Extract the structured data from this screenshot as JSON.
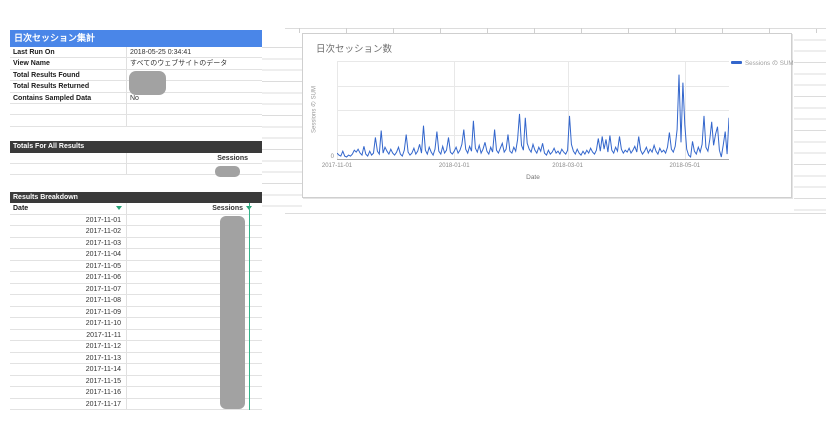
{
  "report": {
    "title": "日次セッション集計",
    "fields": [
      {
        "label": "Last Run On",
        "value": "2018-05-25 0:34:41",
        "redacted": false
      },
      {
        "label": "View Name",
        "value": "すべてのウェブサイトのデータ",
        "redacted": false
      },
      {
        "label": "Total Results Found",
        "value": "",
        "redacted": true
      },
      {
        "label": "Total Results Returned",
        "value": "",
        "redacted": true
      },
      {
        "label": "Contains Sampled Data",
        "value": "No",
        "redacted": false
      }
    ]
  },
  "totals": {
    "header": "Totals For All Results",
    "column_label": "Sessions",
    "value": "",
    "redacted": true
  },
  "breakdown": {
    "header": "Results Breakdown",
    "columns": [
      "Date",
      "Sessions"
    ],
    "dates": [
      "2017-11-01",
      "2017-11-02",
      "2017-11-03",
      "2017-11-04",
      "2017-11-05",
      "2017-11-06",
      "2017-11-07",
      "2017-11-08",
      "2017-11-09",
      "2017-11-10",
      "2017-11-11",
      "2017-11-12",
      "2017-11-13",
      "2017-11-14",
      "2017-11-15",
      "2017-11-16",
      "2017-11-17"
    ],
    "sessions_redacted": true
  },
  "chart_data": {
    "type": "line",
    "title": "日次セッション数",
    "xlabel": "Date",
    "ylabel": "Sessions の SUM",
    "legend": "Sessions の SUM",
    "legend_position": "right-top",
    "grid": true,
    "ylim": [
      0,
      100
    ],
    "y_ticks": [
      {
        "value": 0,
        "label": "0"
      }
    ],
    "x_ticks": [
      {
        "label": "2017-11-01",
        "day": 0
      },
      {
        "label": "2018-01-01",
        "day": 61
      },
      {
        "label": "2018-03-01",
        "day": 120
      },
      {
        "label": "2018-05-01",
        "day": 181
      }
    ],
    "start_date": "2017-11-01",
    "series": [
      {
        "name": "Sessions の SUM",
        "values": [
          6,
          4,
          3,
          8,
          3,
          2,
          4,
          3,
          5,
          9,
          7,
          10,
          6,
          4,
          13,
          5,
          3,
          8,
          4,
          6,
          22,
          8,
          5,
          29,
          6,
          12,
          8,
          5,
          10,
          6,
          4,
          7,
          12,
          5,
          3,
          9,
          25,
          7,
          4,
          6,
          11,
          5,
          8,
          15,
          6,
          34,
          9,
          5,
          12,
          7,
          4,
          10,
          28,
          8,
          5,
          13,
          6,
          9,
          22,
          7,
          5,
          8,
          12,
          6,
          9,
          15,
          30,
          10,
          6,
          13,
          8,
          39,
          11,
          7,
          14,
          6,
          10,
          17,
          8,
          5,
          12,
          7,
          30,
          9,
          6,
          11,
          16,
          7,
          10,
          25,
          8,
          6,
          12,
          8,
          20,
          46,
          14,
          9,
          42,
          16,
          10,
          7,
          15,
          9,
          6,
          12,
          8,
          16,
          6,
          4,
          9,
          5,
          7,
          11,
          6,
          8,
          5,
          10,
          7,
          5,
          9,
          44,
          15,
          8,
          5,
          10,
          6,
          4,
          8,
          5,
          9,
          6,
          11,
          7,
          5,
          9,
          21,
          8,
          23,
          10,
          20,
          7,
          24,
          9,
          6,
          12,
          8,
          23,
          10,
          6,
          9,
          7,
          11,
          6,
          9,
          13,
          7,
          23,
          9,
          5,
          8,
          12,
          6,
          10,
          7,
          14,
          8,
          5,
          11,
          7,
          9,
          6,
          12,
          27,
          10,
          7,
          13,
          30,
          86,
          17,
          78,
          35,
          10,
          4,
          2,
          18,
          8,
          5,
          12,
          7,
          15,
          44,
          12,
          8,
          20,
          38,
          14,
          25,
          33,
          9,
          2,
          14,
          28,
          5,
          42
        ]
      }
    ]
  },
  "colors": {
    "header_blue": "#4a86e8",
    "section_dark": "#3a3a3a",
    "redaction_gray": "#a2a2a2",
    "line_blue": "#3366cc",
    "filter_green": "#27a377",
    "selection_green": "#35b289"
  }
}
